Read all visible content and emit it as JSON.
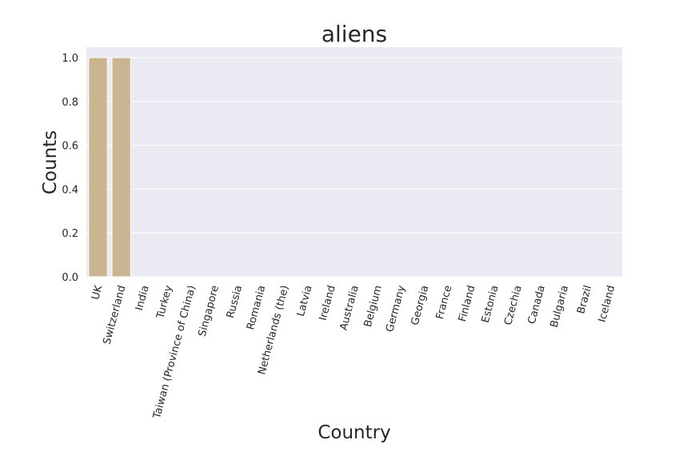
{
  "chart_data": {
    "type": "bar",
    "title": "aliens",
    "xlabel": "Country",
    "ylabel": "Counts",
    "categories": [
      "UK",
      "Switzerland",
      "India",
      "Turkey",
      "Taiwan (Province of China)",
      "Singapore",
      "Russia",
      "Romania",
      "Netherlands (the)",
      "Latvia",
      "Ireland",
      "Australia",
      "Belgium",
      "Germany",
      "Georgia",
      "France",
      "Finland",
      "Estonia",
      "Czechia",
      "Canada",
      "Bulgaria",
      "Brazil",
      "Iceland"
    ],
    "values": [
      1.0,
      1.0,
      0,
      0,
      0,
      0,
      0,
      0,
      0,
      0,
      0,
      0,
      0,
      0,
      0,
      0,
      0,
      0,
      0,
      0,
      0,
      0,
      0
    ],
    "ylim": [
      0,
      1.05
    ],
    "yticks": [
      "0.0",
      "0.2",
      "0.4",
      "0.6",
      "0.8",
      "1.0"
    ],
    "grid": true,
    "bar_color": "#cbb490",
    "background_color": "#eaeaf2"
  }
}
